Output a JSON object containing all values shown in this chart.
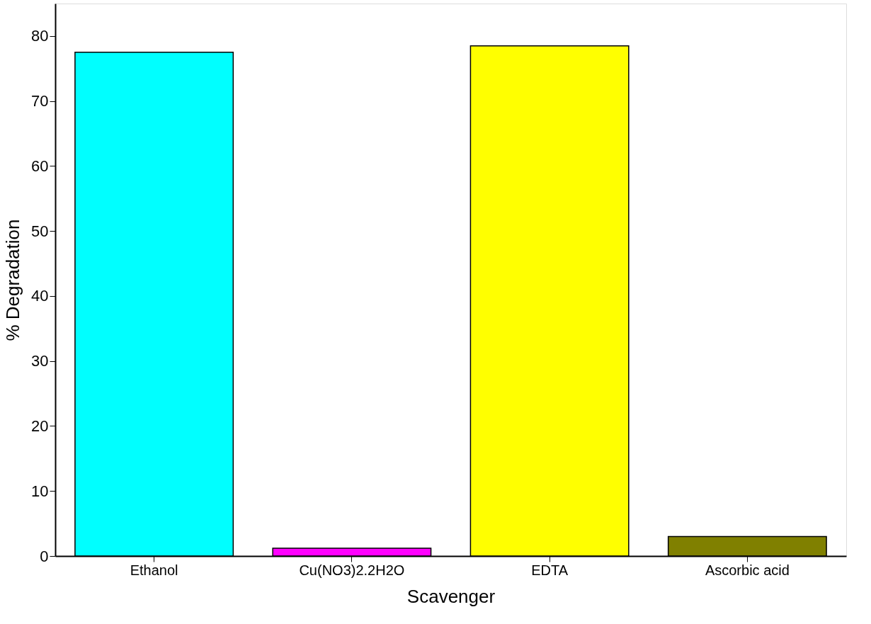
{
  "chart_data": {
    "type": "bar",
    "xlabel": "Scavenger",
    "ylabel": "% Degradation",
    "categories": [
      "Ethanol",
      "Cu(NO3)2.2H2O",
      "EDTA",
      "Ascorbic acid"
    ],
    "values": [
      77.5,
      1.2,
      78.5,
      3
    ],
    "colors": [
      "#00ffff",
      "#ff00ff",
      "#ffff00",
      "#808000"
    ],
    "ylim": [
      0,
      85
    ],
    "yticks": [
      0,
      10,
      20,
      30,
      40,
      50,
      60,
      70,
      80
    ],
    "grid": false,
    "legend": false
  }
}
